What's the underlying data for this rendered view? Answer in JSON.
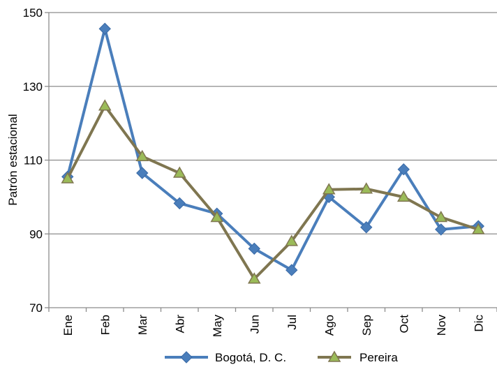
{
  "chart_data": {
    "type": "line",
    "ylabel": "Patrón estacional",
    "ylim": [
      70,
      150
    ],
    "yticks": [
      70,
      90,
      110,
      130,
      150
    ],
    "grid": true,
    "legend_position": "bottom",
    "categories": [
      "Ene",
      "Feb",
      "Mar",
      "Abr",
      "May",
      "Jun",
      "Jul",
      "Ago",
      "Sep",
      "Oct",
      "Nov",
      "Dic"
    ],
    "series": [
      {
        "name": "Bogotá, D. C.",
        "color": "#4a7ebb",
        "marker": "diamond",
        "values": [
          105.5,
          145.6,
          106.5,
          98.3,
          95.5,
          86.0,
          80.2,
          100.0,
          91.8,
          107.5,
          91.2,
          92.1
        ]
      },
      {
        "name": "Pereira",
        "color": "#7f7650",
        "marker": "triangle",
        "marker_fill": "#9bbb59",
        "values": [
          105.0,
          124.7,
          111.0,
          106.5,
          94.5,
          77.8,
          88.0,
          102.0,
          102.2,
          100.0,
          94.5,
          91.2
        ]
      }
    ]
  }
}
